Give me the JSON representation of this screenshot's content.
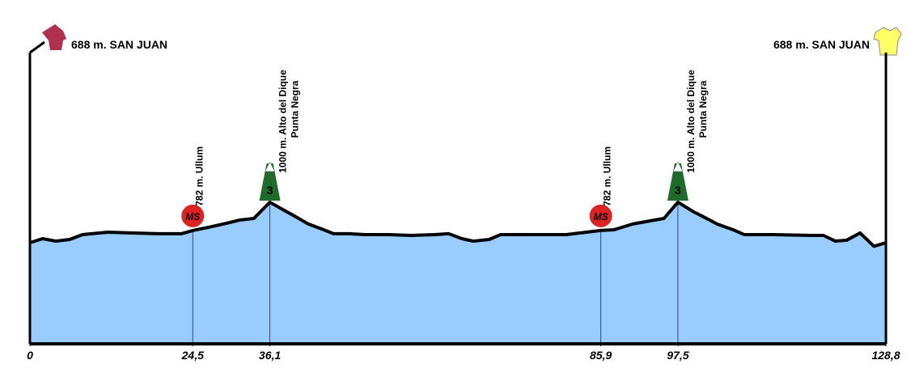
{
  "chart_data": {
    "type": "area",
    "start_label": "688 m. SAN JUAN",
    "finish_label": "688 m. SAN JUAN",
    "x": [
      0,
      1.9,
      3.9,
      6.0,
      7.9,
      11.7,
      15.5,
      19.3,
      22.8,
      24.5,
      26.9,
      29.6,
      31.6,
      33.7,
      36.1,
      38.7,
      39.8,
      41.9,
      43.9,
      45.7,
      48.0,
      50.4,
      53.9,
      57.4,
      60.9,
      63.0,
      65.0,
      66.7,
      69.1,
      70.8,
      74.9,
      80.7,
      85.9,
      87.9,
      90.7,
      93.4,
      95.4,
      97.5,
      99.9,
      101.1,
      103.4,
      105.8,
      107.5,
      111.7,
      117.6,
      119.4,
      121.2,
      122.9,
      124.9,
      127.0,
      128.8
    ],
    "values": [
      688,
      719,
      700,
      713,
      750,
      769,
      763,
      757,
      757,
      782,
      807,
      838,
      863,
      875,
      1000,
      925,
      894,
      832,
      794,
      757,
      757,
      750,
      750,
      744,
      750,
      757,
      719,
      700,
      713,
      750,
      750,
      750,
      782,
      788,
      832,
      857,
      875,
      1000,
      925,
      894,
      832,
      788,
      750,
      750,
      744,
      744,
      700,
      707,
      763,
      660,
      688
    ],
    "color": "#99ccff",
    "line_color": "#000000",
    "xlim": [
      0,
      128.8
    ],
    "ylim": [
      -92,
      2310
    ],
    "xticks": [
      0,
      {
        "value": 24.5,
        "label": "24,5"
      },
      {
        "value": 36.1,
        "label": "36,1"
      },
      {
        "value": 85.9,
        "label": "85,9"
      },
      {
        "value": 97.5,
        "label": "97,5"
      },
      {
        "value": 128.8,
        "label": "128,8"
      }
    ],
    "points": [
      {
        "x": 24.5,
        "icon": "MS",
        "label": "782 m. Ullum"
      },
      {
        "x": 36.1,
        "icon": "3",
        "label": "1000 m. Alto del Dique",
        "sublabel": "Punta Negra"
      },
      {
        "x": 85.9,
        "icon": "MS",
        "label": "782 m. Ullum"
      },
      {
        "x": 97.5,
        "icon": "3",
        "label": "1000 m. Alto del Dique",
        "sublabel": "Punta Negra"
      }
    ]
  }
}
